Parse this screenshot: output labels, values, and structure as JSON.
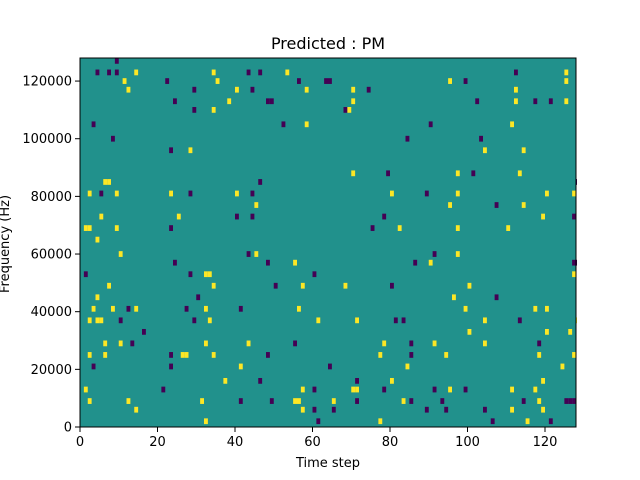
{
  "chart_data": {
    "type": "heatmap",
    "title": "Predicted : PM",
    "xlabel": "Time step",
    "ylabel": "Frequency (Hz)",
    "xlim": [
      0,
      128
    ],
    "ylim": [
      0,
      128000
    ],
    "x_ticks": [
      0,
      20,
      40,
      60,
      80,
      100,
      120
    ],
    "y_ticks": [
      0,
      20000,
      40000,
      60000,
      80000,
      100000,
      120000
    ],
    "x_tick_labels": [
      "0",
      "20",
      "40",
      "60",
      "80",
      "100",
      "120"
    ],
    "y_tick_labels": [
      "0",
      "20000",
      "40000",
      "60000",
      "80000",
      "100000",
      "120000"
    ],
    "grid": false,
    "colors": {
      "background": "#21918c",
      "low": "#440154",
      "high": "#fde725"
    },
    "value_levels": {
      "background": 0,
      "low": -1,
      "high": 1
    },
    "cell_size": {
      "time": 1,
      "freq_hz": 1000
    },
    "cells": [
      [
        9,
        127000,
        -1
      ],
      [
        4,
        123000,
        -1
      ],
      [
        7,
        123000,
        -1
      ],
      [
        9,
        123000,
        -1
      ],
      [
        14,
        123000,
        1
      ],
      [
        34,
        123000,
        1
      ],
      [
        43,
        123000,
        -1
      ],
      [
        46,
        123000,
        -1
      ],
      [
        53,
        123000,
        1
      ],
      [
        112,
        123000,
        -1
      ],
      [
        125,
        123000,
        1
      ],
      [
        11,
        120000,
        1
      ],
      [
        22,
        120000,
        -1
      ],
      [
        35,
        120000,
        1
      ],
      [
        56,
        120000,
        -1
      ],
      [
        63,
        120000,
        -1
      ],
      [
        64,
        120000,
        -1
      ],
      [
        95,
        120000,
        1
      ],
      [
        99,
        120000,
        -1
      ],
      [
        125,
        120000,
        1
      ],
      [
        12,
        117000,
        1
      ],
      [
        29,
        117000,
        -1
      ],
      [
        40,
        117000,
        1
      ],
      [
        44,
        117000,
        -1
      ],
      [
        58,
        117000,
        1
      ],
      [
        70,
        117000,
        1
      ],
      [
        74,
        117000,
        -1
      ],
      [
        112,
        117000,
        1
      ],
      [
        24,
        113000,
        -1
      ],
      [
        38,
        113000,
        1
      ],
      [
        48,
        113000,
        -1
      ],
      [
        49,
        113000,
        -1
      ],
      [
        70,
        113000,
        1
      ],
      [
        102,
        113000,
        -1
      ],
      [
        112,
        113000,
        1
      ],
      [
        117,
        113000,
        -1
      ],
      [
        121,
        113000,
        -1
      ],
      [
        125,
        113000,
        1
      ],
      [
        29,
        110000,
        -1
      ],
      [
        34,
        110000,
        1
      ],
      [
        68,
        110000,
        -1
      ],
      [
        69,
        110000,
        1
      ],
      [
        3,
        105000,
        -1
      ],
      [
        52,
        105000,
        -1
      ],
      [
        58,
        105000,
        1
      ],
      [
        90,
        105000,
        -1
      ],
      [
        111,
        105000,
        1
      ],
      [
        8,
        100000,
        -1
      ],
      [
        84,
        100000,
        -1
      ],
      [
        103,
        100000,
        -1
      ],
      [
        23,
        96000,
        -1
      ],
      [
        28,
        96000,
        1
      ],
      [
        104,
        96000,
        1
      ],
      [
        114,
        96000,
        1
      ],
      [
        70,
        88000,
        1
      ],
      [
        79,
        88000,
        -1
      ],
      [
        97,
        88000,
        1
      ],
      [
        101,
        88000,
        -1
      ],
      [
        113,
        88000,
        1
      ],
      [
        46,
        85000,
        -1
      ],
      [
        6,
        85000,
        1
      ],
      [
        7,
        85000,
        1
      ],
      [
        128,
        85000,
        -1
      ],
      [
        2,
        81000,
        1
      ],
      [
        5,
        81000,
        -1
      ],
      [
        9,
        81000,
        1
      ],
      [
        23,
        81000,
        1
      ],
      [
        28,
        81000,
        -1
      ],
      [
        40,
        81000,
        1
      ],
      [
        44,
        81000,
        -1
      ],
      [
        80,
        81000,
        1
      ],
      [
        89,
        81000,
        -1
      ],
      [
        97,
        81000,
        1
      ],
      [
        120,
        81000,
        1
      ],
      [
        127,
        81000,
        1
      ],
      [
        45,
        77000,
        1
      ],
      [
        95,
        77000,
        1
      ],
      [
        107,
        77000,
        -1
      ],
      [
        114,
        77000,
        1
      ],
      [
        5,
        73000,
        1
      ],
      [
        25,
        73000,
        1
      ],
      [
        40,
        73000,
        -1
      ],
      [
        44,
        73000,
        -1
      ],
      [
        78,
        73000,
        -1
      ],
      [
        119,
        73000,
        1
      ],
      [
        127,
        73000,
        -1
      ],
      [
        2,
        69000,
        1
      ],
      [
        9,
        69000,
        1
      ],
      [
        23,
        69000,
        -1
      ],
      [
        75,
        69000,
        -1
      ],
      [
        82,
        69000,
        1
      ],
      [
        97,
        69000,
        1
      ],
      [
        110,
        69000,
        1
      ],
      [
        1,
        69000,
        1
      ],
      [
        4,
        65000,
        1
      ],
      [
        10,
        60000,
        1
      ],
      [
        43,
        60000,
        -1
      ],
      [
        45,
        60000,
        1
      ],
      [
        91,
        60000,
        -1
      ],
      [
        97,
        60000,
        1
      ],
      [
        24,
        57000,
        -1
      ],
      [
        48,
        57000,
        -1
      ],
      [
        55,
        57000,
        1
      ],
      [
        86,
        57000,
        -1
      ],
      [
        90,
        57000,
        1
      ],
      [
        127,
        57000,
        -1
      ],
      [
        128,
        57000,
        -1
      ],
      [
        1,
        53000,
        -1
      ],
      [
        28,
        53000,
        -1
      ],
      [
        32,
        53000,
        1
      ],
      [
        33,
        53000,
        1
      ],
      [
        60,
        53000,
        -1
      ],
      [
        127,
        53000,
        1
      ],
      [
        7,
        49000,
        1
      ],
      [
        34,
        49000,
        1
      ],
      [
        50,
        49000,
        -1
      ],
      [
        57,
        49000,
        1
      ],
      [
        68,
        49000,
        1
      ],
      [
        80,
        49000,
        -1
      ],
      [
        100,
        49000,
        1
      ],
      [
        4,
        45000,
        1
      ],
      [
        30,
        45000,
        -1
      ],
      [
        96,
        45000,
        1
      ],
      [
        107,
        45000,
        -1
      ],
      [
        3,
        41000,
        1
      ],
      [
        8,
        41000,
        1
      ],
      [
        12,
        41000,
        -1
      ],
      [
        14,
        41000,
        1
      ],
      [
        27,
        41000,
        -1
      ],
      [
        32,
        41000,
        1
      ],
      [
        41,
        41000,
        -1
      ],
      [
        56,
        41000,
        1
      ],
      [
        99,
        41000,
        1
      ],
      [
        117,
        41000,
        1
      ],
      [
        120,
        41000,
        1
      ],
      [
        2,
        37000,
        1
      ],
      [
        4,
        37000,
        1
      ],
      [
        5,
        37000,
        1
      ],
      [
        10,
        37000,
        -1
      ],
      [
        29,
        37000,
        -1
      ],
      [
        33,
        37000,
        1
      ],
      [
        61,
        37000,
        1
      ],
      [
        71,
        37000,
        1
      ],
      [
        81,
        37000,
        -1
      ],
      [
        83,
        37000,
        -1
      ],
      [
        113,
        37000,
        -1
      ],
      [
        104,
        37000,
        1
      ],
      [
        128,
        37000,
        1
      ],
      [
        16,
        33000,
        -1
      ],
      [
        100,
        33000,
        1
      ],
      [
        120,
        33000,
        1
      ],
      [
        126,
        33000,
        1
      ],
      [
        6,
        29000,
        1
      ],
      [
        10,
        29000,
        1
      ],
      [
        13,
        29000,
        -1
      ],
      [
        32,
        29000,
        1
      ],
      [
        43,
        29000,
        1
      ],
      [
        55,
        29000,
        -1
      ],
      [
        78,
        29000,
        1
      ],
      [
        85,
        29000,
        -1
      ],
      [
        91,
        29000,
        1
      ],
      [
        104,
        29000,
        1
      ],
      [
        118,
        29000,
        -1
      ],
      [
        2,
        25000,
        1
      ],
      [
        6,
        25000,
        1
      ],
      [
        23,
        25000,
        -1
      ],
      [
        26,
        25000,
        1
      ],
      [
        27,
        25000,
        1
      ],
      [
        34,
        25000,
        1
      ],
      [
        48,
        25000,
        -1
      ],
      [
        77,
        25000,
        1
      ],
      [
        85,
        25000,
        -1
      ],
      [
        94,
        25000,
        1
      ],
      [
        118,
        25000,
        1
      ],
      [
        127,
        25000,
        1
      ],
      [
        3,
        21000,
        -1
      ],
      [
        23,
        21000,
        -1
      ],
      [
        41,
        21000,
        1
      ],
      [
        64,
        21000,
        -1
      ],
      [
        84,
        21000,
        1
      ],
      [
        124,
        21000,
        1
      ],
      [
        37,
        16000,
        1
      ],
      [
        46,
        16000,
        -1
      ],
      [
        71,
        16000,
        -1
      ],
      [
        80,
        16000,
        1
      ],
      [
        119,
        16000,
        1
      ],
      [
        1,
        13000,
        1
      ],
      [
        21,
        13000,
        -1
      ],
      [
        57,
        13000,
        1
      ],
      [
        60,
        13000,
        -1
      ],
      [
        70,
        13000,
        1
      ],
      [
        71,
        13000,
        1
      ],
      [
        78,
        13000,
        -1
      ],
      [
        91,
        13000,
        -1
      ],
      [
        95,
        13000,
        1
      ],
      [
        99,
        13000,
        -1
      ],
      [
        111,
        13000,
        1
      ],
      [
        117,
        13000,
        1
      ],
      [
        2,
        9000,
        1
      ],
      [
        12,
        9000,
        1
      ],
      [
        31,
        9000,
        1
      ],
      [
        41,
        9000,
        -1
      ],
      [
        49,
        9000,
        -1
      ],
      [
        55,
        9000,
        1
      ],
      [
        56,
        9000,
        1
      ],
      [
        65,
        9000,
        1
      ],
      [
        71,
        9000,
        -1
      ],
      [
        83,
        9000,
        1
      ],
      [
        85,
        9000,
        -1
      ],
      [
        93,
        9000,
        -1
      ],
      [
        114,
        9000,
        -1
      ],
      [
        118,
        9000,
        1
      ],
      [
        125,
        9000,
        -1
      ],
      [
        126,
        9000,
        -1
      ],
      [
        127,
        9000,
        -1
      ],
      [
        14,
        6000,
        1
      ],
      [
        57,
        6000,
        1
      ],
      [
        60,
        6000,
        -1
      ],
      [
        65,
        6000,
        -1
      ],
      [
        89,
        6000,
        -1
      ],
      [
        94,
        6000,
        -1
      ],
      [
        104,
        6000,
        -1
      ],
      [
        111,
        6000,
        1
      ],
      [
        119,
        6000,
        1
      ],
      [
        32,
        2000,
        1
      ],
      [
        61,
        2000,
        -1
      ],
      [
        77,
        2000,
        1
      ],
      [
        106,
        2000,
        -1
      ],
      [
        115,
        2000,
        1
      ],
      [
        121,
        2000,
        -1
      ]
    ]
  }
}
